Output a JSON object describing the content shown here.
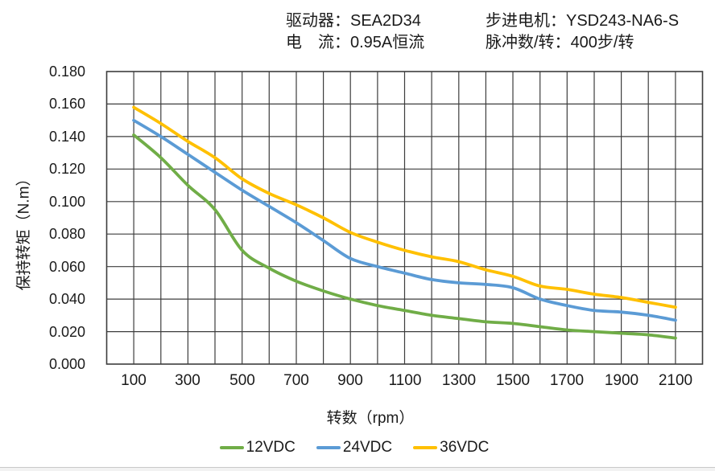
{
  "header": {
    "driver_label": "驱动器：",
    "driver_value": "SEA2D34",
    "current_label": "电　流：",
    "current_value": "0.95A恒流",
    "motor_label": "步进电机：",
    "motor_value": "YSD243-NA6-S",
    "pulses_label": "脉冲数/转：",
    "pulses_value": "400步/转"
  },
  "chart_data": {
    "type": "line",
    "title": "",
    "xlabel": "转数（rpm）",
    "ylabel": "保持转矩（N.m）",
    "xlim": [
      0,
      2200
    ],
    "ylim": [
      0,
      0.18
    ],
    "grid": true,
    "x_grid_step_rpm": 100,
    "y_grid_step": 0.02,
    "xtick_labels": [
      "100",
      "300",
      "500",
      "700",
      "900",
      "1100",
      "1300",
      "1500",
      "1700",
      "1900",
      "2100"
    ],
    "ytick_labels": [
      "0.000",
      "0.020",
      "0.040",
      "0.060",
      "0.080",
      "0.100",
      "0.120",
      "0.140",
      "0.160",
      "0.180"
    ],
    "legend_position": "bottom",
    "x": [
      100,
      200,
      300,
      400,
      500,
      600,
      700,
      800,
      900,
      1000,
      1100,
      1200,
      1300,
      1400,
      1500,
      1600,
      1700,
      1800,
      1900,
      2000,
      2100
    ],
    "series": [
      {
        "name": "12VDC",
        "color": "#70AD47",
        "values": [
          0.141,
          0.127,
          0.11,
          0.095,
          0.07,
          0.059,
          0.051,
          0.045,
          0.04,
          0.036,
          0.033,
          0.03,
          0.028,
          0.026,
          0.025,
          0.023,
          0.021,
          0.02,
          0.019,
          0.018,
          0.016
        ]
      },
      {
        "name": "24VDC",
        "color": "#5B9BD5",
        "values": [
          0.15,
          0.14,
          0.129,
          0.118,
          0.107,
          0.097,
          0.087,
          0.076,
          0.065,
          0.06,
          0.056,
          0.052,
          0.05,
          0.049,
          0.047,
          0.04,
          0.036,
          0.033,
          0.032,
          0.03,
          0.027
        ]
      },
      {
        "name": "36VDC",
        "color": "#FFC000",
        "values": [
          0.158,
          0.148,
          0.137,
          0.127,
          0.114,
          0.105,
          0.098,
          0.09,
          0.081,
          0.075,
          0.07,
          0.066,
          0.063,
          0.058,
          0.054,
          0.048,
          0.046,
          0.043,
          0.041,
          0.038,
          0.035
        ]
      }
    ]
  },
  "colors": {
    "grid": "#3d3d3d",
    "text": "#1a1a1a"
  }
}
